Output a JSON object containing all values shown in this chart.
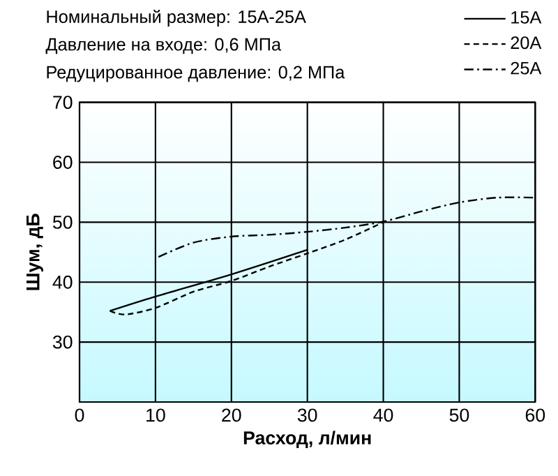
{
  "chart_data": {
    "type": "line",
    "xlabel": "Расход, л/мин",
    "ylabel": "Шум, дБ",
    "annotations": [
      "Номинальный размер: 15A-25A",
      "Давление на входе: 0,6 МПа",
      "Редуцированное давление: 0,2 МПа"
    ],
    "xlim": [
      0,
      60
    ],
    "xticks": [
      0,
      10,
      20,
      30,
      40,
      50,
      60
    ],
    "ylim": [
      20,
      70
    ],
    "yticks": [
      30,
      40,
      50,
      60,
      70
    ],
    "grid": true,
    "legend": "top right",
    "marker": "none",
    "series": [
      {
        "name": "15A",
        "color": "#000000",
        "line_style": "solid",
        "x": [
          4,
          10,
          20,
          30
        ],
        "values": [
          35.2,
          37.6,
          41.3,
          45.4
        ]
      },
      {
        "name": "20A",
        "color": "#000000",
        "line_style": "dashed",
        "x": [
          4,
          6,
          10,
          15,
          20,
          25,
          30,
          35,
          40
        ],
        "values": [
          35.2,
          34.6,
          35.7,
          38.4,
          40.2,
          42.6,
          44.8,
          47.1,
          50
        ]
      },
      {
        "name": "25A",
        "color": "#000000",
        "line_style": "dashdot",
        "x": [
          10.4,
          15,
          20,
          25,
          30,
          35,
          40,
          45,
          50,
          55,
          60
        ],
        "values": [
          44.2,
          46.6,
          47.6,
          47.9,
          48.4,
          49.1,
          50.1,
          51.8,
          53.3,
          54.1,
          54.1
        ]
      }
    ]
  }
}
